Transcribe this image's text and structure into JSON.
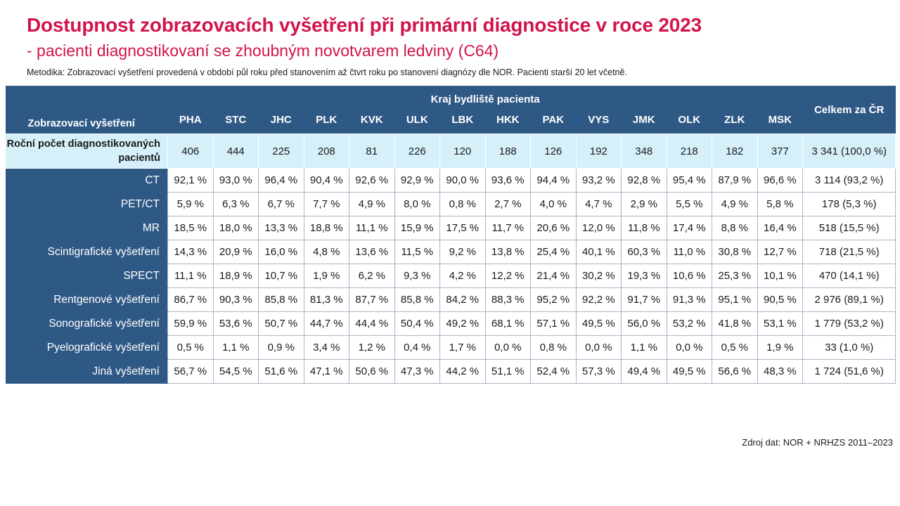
{
  "title": "Dostupnost zobrazovacích vyšetření při primární diagnostice v roce 2023",
  "subtitle": "- pacienti diagnostikovaní se zhoubným novotvarem ledviny (C64)",
  "methodology": "Metodika: Zobrazovací vyšetření provedená v období půl roku před stanovením až čtvrt roku po stanovení diagnózy dle NOR. Pacienti starší 20 let včetně.",
  "source": "Zdroj dat: NOR + NRHZS 2011–2023",
  "colors": {
    "title": "#d2144a",
    "header_bg": "#2f5985",
    "count_row_bg": "#d6f0f9"
  },
  "header": {
    "row_label": "Zobrazovací vyšetření",
    "group_label": "Kraj bydliště pacienta",
    "total_label": "Celkem za ČR"
  },
  "chart_data": {
    "type": "table",
    "regions": [
      "PHA",
      "STC",
      "JHC",
      "PLK",
      "KVK",
      "ULK",
      "LBK",
      "HKK",
      "PAK",
      "VYS",
      "JMK",
      "OLK",
      "ZLK",
      "MSK"
    ],
    "count_row": {
      "label": "Roční počet diagnostikovaných pacientů",
      "values": [
        "406",
        "444",
        "225",
        "208",
        "81",
        "226",
        "120",
        "188",
        "126",
        "192",
        "348",
        "218",
        "182",
        "377"
      ],
      "total": "3 341 (100,0 %)"
    },
    "rows": [
      {
        "label": "CT",
        "values": [
          "92,1 %",
          "93,0 %",
          "96,4 %",
          "90,4 %",
          "92,6 %",
          "92,9 %",
          "90,0 %",
          "93,6 %",
          "94,4 %",
          "93,2 %",
          "92,8 %",
          "95,4 %",
          "87,9 %",
          "96,6 %"
        ],
        "total": "3 114 (93,2 %)"
      },
      {
        "label": "PET/CT",
        "values": [
          "5,9 %",
          "6,3 %",
          "6,7 %",
          "7,7 %",
          "4,9 %",
          "8,0 %",
          "0,8 %",
          "2,7 %",
          "4,0 %",
          "4,7 %",
          "2,9 %",
          "5,5 %",
          "4,9 %",
          "5,8 %"
        ],
        "total": "178 (5,3 %)"
      },
      {
        "label": "MR",
        "values": [
          "18,5 %",
          "18,0 %",
          "13,3 %",
          "18,8 %",
          "11,1 %",
          "15,9 %",
          "17,5 %",
          "11,7 %",
          "20,6 %",
          "12,0 %",
          "11,8 %",
          "17,4 %",
          "8,8 %",
          "16,4 %"
        ],
        "total": "518 (15,5 %)"
      },
      {
        "label": "Scintigrafické vyšetření",
        "values": [
          "14,3 %",
          "20,9 %",
          "16,0 %",
          "4,8 %",
          "13,6 %",
          "11,5 %",
          "9,2 %",
          "13,8 %",
          "25,4 %",
          "40,1 %",
          "60,3 %",
          "11,0 %",
          "30,8 %",
          "12,7 %"
        ],
        "total": "718 (21,5 %)"
      },
      {
        "label": "SPECT",
        "values": [
          "11,1 %",
          "18,9 %",
          "10,7 %",
          "1,9 %",
          "6,2 %",
          "9,3 %",
          "4,2 %",
          "12,2 %",
          "21,4 %",
          "30,2 %",
          "19,3 %",
          "10,6 %",
          "25,3 %",
          "10,1 %"
        ],
        "total": "470 (14,1 %)"
      },
      {
        "label": "Rentgenové vyšetření",
        "values": [
          "86,7 %",
          "90,3 %",
          "85,8 %",
          "81,3 %",
          "87,7 %",
          "85,8 %",
          "84,2 %",
          "88,3 %",
          "95,2 %",
          "92,2 %",
          "91,7 %",
          "91,3 %",
          "95,1 %",
          "90,5 %"
        ],
        "total": "2 976 (89,1 %)"
      },
      {
        "label": "Sonografické vyšetření",
        "values": [
          "59,9 %",
          "53,6 %",
          "50,7 %",
          "44,7 %",
          "44,4 %",
          "50,4 %",
          "49,2 %",
          "68,1 %",
          "57,1 %",
          "49,5 %",
          "56,0 %",
          "53,2 %",
          "41,8 %",
          "53,1 %"
        ],
        "total": "1 779 (53,2 %)"
      },
      {
        "label": "Pyelografické vyšetření",
        "values": [
          "0,5 %",
          "1,1 %",
          "0,9 %",
          "3,4 %",
          "1,2 %",
          "0,4 %",
          "1,7 %",
          "0,0 %",
          "0,8 %",
          "0,0 %",
          "1,1 %",
          "0,0 %",
          "0,5 %",
          "1,9 %"
        ],
        "total": "33 (1,0 %)"
      },
      {
        "label": "Jiná vyšetření",
        "values": [
          "56,7 %",
          "54,5 %",
          "51,6 %",
          "47,1 %",
          "50,6 %",
          "47,3 %",
          "44,2 %",
          "51,1 %",
          "52,4 %",
          "57,3 %",
          "49,4 %",
          "49,5 %",
          "56,6 %",
          "48,3 %"
        ],
        "total": "1 724 (51,6 %)"
      }
    ]
  }
}
